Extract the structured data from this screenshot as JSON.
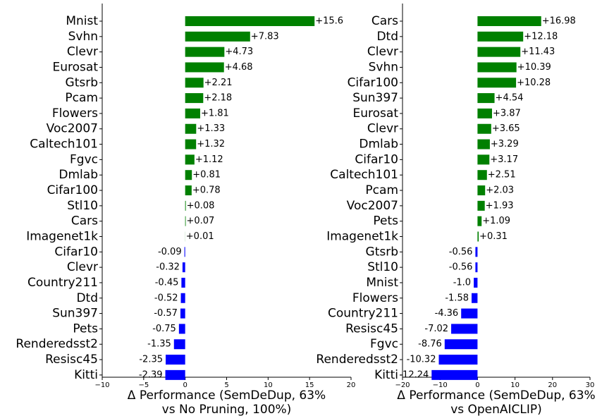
{
  "chart_data": [
    {
      "type": "barh",
      "categories": [
        "Mnist",
        "Svhn",
        "Clevr",
        "Eurosat",
        "Gtsrb",
        "Pcam",
        "Flowers",
        "Voc2007",
        "Caltech101",
        "Fgvc",
        "Dmlab",
        "Cifar100",
        "Stl10",
        "Cars",
        "Imagenet1k",
        "Cifar10",
        "Clevr",
        "Country211",
        "Dtd",
        "Sun397",
        "Pets",
        "Renderedsst2",
        "Resisc45",
        "Kitti"
      ],
      "values": [
        15.6,
        7.83,
        4.73,
        4.68,
        2.21,
        2.18,
        1.81,
        1.33,
        1.32,
        1.12,
        0.81,
        0.78,
        0.08,
        0.07,
        0.01,
        -0.09,
        -0.32,
        -0.45,
        -0.52,
        -0.57,
        -0.75,
        -1.35,
        -2.35,
        -2.39
      ],
      "value_labels": [
        "+15.6",
        "+7.83",
        "+4.73",
        "+4.68",
        "+2.21",
        "+2.18",
        "+1.81",
        "+1.33",
        "+1.32",
        "+1.12",
        "+0.81",
        "+0.78",
        "+0.08",
        "+0.07",
        "+0.01",
        "-0.09",
        "-0.32",
        "-0.45",
        "-0.52",
        "-0.57",
        "-0.75",
        "-1.35",
        "-2.35",
        "-2.39"
      ],
      "colors": {
        "positive": "#008000",
        "negative": "#0000ff"
      },
      "xlim": [
        -10,
        20
      ],
      "xticks": [
        {
          "value": -10,
          "label": "−10"
        },
        {
          "value": -5,
          "label": "−5"
        },
        0,
        5,
        10,
        15,
        20
      ],
      "xlabel": [
        "Δ Performance (SemDeDup, 63%",
        "vs No Pruning, 100%)"
      ]
    },
    {
      "type": "barh",
      "categories": [
        "Cars",
        "Dtd",
        "Clevr",
        "Svhn",
        "Cifar100",
        "Sun397",
        "Eurosat",
        "Clevr",
        "Dmlab",
        "Cifar10",
        "Caltech101",
        "Pcam",
        "Voc2007",
        "Pets",
        "Imagenet1k",
        "Gtsrb",
        "Stl10",
        "Mnist",
        "Flowers",
        "Country211",
        "Resisc45",
        "Fgvc",
        "Renderedsst2",
        "Kitti"
      ],
      "values": [
        16.98,
        12.18,
        11.43,
        10.39,
        10.28,
        4.54,
        3.87,
        3.65,
        3.29,
        3.17,
        2.51,
        2.03,
        1.93,
        1.09,
        0.31,
        -0.56,
        -0.56,
        -1.0,
        -1.58,
        -4.36,
        -7.02,
        -8.76,
        -10.32,
        -12.24
      ],
      "value_labels": [
        "+16.98",
        "+12.18",
        "+11.43",
        "+10.39",
        "+10.28",
        "+4.54",
        "+3.87",
        "+3.65",
        "+3.29",
        "+3.17",
        "+2.51",
        "+2.03",
        "+1.93",
        "+1.09",
        "+0.31",
        "-0.56",
        "-0.56",
        "-1.0",
        "-1.58",
        "-4.36",
        "-7.02",
        "-8.76",
        "-10.32",
        "-12.24"
      ],
      "colors": {
        "positive": "#008000",
        "negative": "#0000ff"
      },
      "xlim": [
        -20,
        30
      ],
      "xticks": [
        {
          "value": -20,
          "label": "−20"
        },
        {
          "value": -10,
          "label": "−10"
        },
        0,
        10,
        20,
        30
      ],
      "xlabel": [
        "Δ Performance (SemDeDup, 63%",
        "vs OpenAICLIP)"
      ]
    }
  ]
}
